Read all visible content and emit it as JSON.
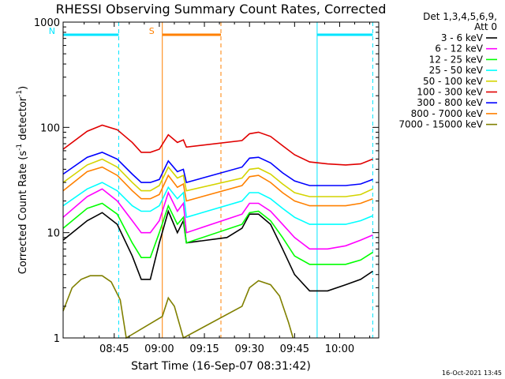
{
  "chart_data": {
    "type": "line",
    "title": "RHESSI Observing Summary Count Rates, Corrected",
    "xlabel": "Start Time (16-Sep-07 08:31:42)",
    "ylabel_main": "Corrected Count Rate (s",
    "ylabel_sup1": "-1",
    "ylabel_mid": " detector",
    "ylabel_sup2": "-1",
    "ylabel_end": ")",
    "yscale": "log",
    "ylim": [
      1,
      1000
    ],
    "xlim_minutes": [
      508,
      613
    ],
    "x_ticks": [
      {
        "minute": 525,
        "label": "08:45"
      },
      {
        "minute": 540,
        "label": "09:00"
      },
      {
        "minute": 555,
        "label": "09:15"
      },
      {
        "minute": 570,
        "label": "09:30"
      },
      {
        "minute": 585,
        "label": "09:45"
      },
      {
        "minute": 600,
        "label": "10:00"
      }
    ],
    "y_ticks": [
      {
        "value": 1,
        "label": "1"
      },
      {
        "value": 10,
        "label": "10"
      },
      {
        "value": 100,
        "label": "100"
      },
      {
        "value": 1000,
        "label": "1000"
      }
    ],
    "legend_header": [
      "Det 1,3,4,5,6,9,",
      "Att 0"
    ],
    "legend_position": "right",
    "timestamp": "16-Oct-2021 13:45",
    "data_gap_minutes": [
      563,
      568
    ],
    "markers": [
      {
        "label": "N",
        "color": "#00e5ff",
        "start": 508,
        "end": 526.5
      },
      {
        "label": "S",
        "color": "#ff8000",
        "start": 541,
        "end": 560.5
      },
      {
        "label": "",
        "color": "#00e5ff",
        "start": 592.5,
        "end": 611
      }
    ],
    "series": [
      {
        "name": "3 - 6 keV",
        "color": "#000000",
        "points": [
          [
            508,
            8.5
          ],
          [
            516,
            13
          ],
          [
            521,
            15.5
          ],
          [
            526,
            12
          ],
          [
            531,
            6
          ],
          [
            534,
            3.6
          ],
          [
            537,
            3.6
          ],
          [
            540,
            8
          ],
          [
            543,
            16
          ],
          [
            546,
            10
          ],
          [
            548,
            13
          ],
          [
            549,
            8
          ],
          [
            562.5,
            9
          ],
          [
            567.5,
            11
          ],
          [
            570,
            15
          ],
          [
            573,
            15
          ],
          [
            577,
            12
          ],
          [
            581,
            7
          ],
          [
            585,
            4
          ],
          [
            590,
            2.8
          ],
          [
            596,
            2.8
          ],
          [
            602,
            3.2
          ],
          [
            607,
            3.6
          ],
          [
            611,
            4.3
          ]
        ]
      },
      {
        "name": "6 - 12 keV",
        "color": "#ff00ff",
        "points": [
          [
            508,
            14
          ],
          [
            516,
            22
          ],
          [
            521,
            26
          ],
          [
            526,
            20
          ],
          [
            531,
            13
          ],
          [
            534,
            10
          ],
          [
            537,
            10
          ],
          [
            540,
            13
          ],
          [
            543,
            24
          ],
          [
            546,
            16
          ],
          [
            548,
            19
          ],
          [
            549,
            10
          ],
          [
            567.5,
            15
          ],
          [
            570,
            19
          ],
          [
            573,
            19
          ],
          [
            577,
            16
          ],
          [
            581,
            12
          ],
          [
            585,
            9
          ],
          [
            590,
            7
          ],
          [
            596,
            7
          ],
          [
            602,
            7.5
          ],
          [
            607,
            8.5
          ],
          [
            611,
            9.5
          ]
        ]
      },
      {
        "name": "12 - 25 keV",
        "color": "#00ff00",
        "points": [
          [
            508,
            11
          ],
          [
            516,
            17
          ],
          [
            521,
            19
          ],
          [
            526,
            15
          ],
          [
            531,
            8
          ],
          [
            534,
            5.8
          ],
          [
            537,
            5.8
          ],
          [
            540,
            10
          ],
          [
            543,
            18
          ],
          [
            546,
            12
          ],
          [
            548,
            14
          ],
          [
            549,
            8
          ],
          [
            567.5,
            12
          ],
          [
            570,
            15.5
          ],
          [
            573,
            16
          ],
          [
            577,
            13
          ],
          [
            581,
            9
          ],
          [
            585,
            6
          ],
          [
            590,
            5
          ],
          [
            596,
            5
          ],
          [
            602,
            5
          ],
          [
            607,
            5.5
          ],
          [
            611,
            6.5
          ]
        ]
      },
      {
        "name": "25 - 50 keV",
        "color": "#00ffff",
        "points": [
          [
            508,
            18
          ],
          [
            516,
            26
          ],
          [
            521,
            30
          ],
          [
            526,
            25
          ],
          [
            531,
            18
          ],
          [
            534,
            16
          ],
          [
            537,
            16
          ],
          [
            540,
            18
          ],
          [
            543,
            27
          ],
          [
            546,
            21
          ],
          [
            548,
            24
          ],
          [
            549,
            14
          ],
          [
            567.5,
            20
          ],
          [
            570,
            24
          ],
          [
            573,
            24
          ],
          [
            577,
            21
          ],
          [
            581,
            17
          ],
          [
            585,
            14
          ],
          [
            590,
            12
          ],
          [
            596,
            12
          ],
          [
            602,
            12
          ],
          [
            607,
            13
          ],
          [
            611,
            14.5
          ]
        ]
      },
      {
        "name": "50 - 100 keV",
        "color": "#d4d400",
        "points": [
          [
            508,
            30
          ],
          [
            516,
            44
          ],
          [
            521,
            50
          ],
          [
            526,
            42
          ],
          [
            531,
            30
          ],
          [
            534,
            25
          ],
          [
            537,
            25
          ],
          [
            540,
            28
          ],
          [
            543,
            42
          ],
          [
            546,
            33
          ],
          [
            548,
            35
          ],
          [
            549,
            25
          ],
          [
            567.5,
            33
          ],
          [
            570,
            40
          ],
          [
            573,
            41
          ],
          [
            577,
            36
          ],
          [
            581,
            29
          ],
          [
            585,
            24
          ],
          [
            590,
            22
          ],
          [
            596,
            22
          ],
          [
            602,
            22
          ],
          [
            607,
            23
          ],
          [
            611,
            26
          ]
        ]
      },
      {
        "name": "100 - 300 keV",
        "color": "#e00000",
        "points": [
          [
            508,
            62
          ],
          [
            516,
            92
          ],
          [
            521,
            105
          ],
          [
            526,
            95
          ],
          [
            531,
            72
          ],
          [
            534,
            58
          ],
          [
            537,
            58
          ],
          [
            540,
            62
          ],
          [
            543,
            85
          ],
          [
            546,
            72
          ],
          [
            548,
            76
          ],
          [
            549,
            65
          ],
          [
            567.5,
            75
          ],
          [
            570,
            87
          ],
          [
            573,
            90
          ],
          [
            577,
            82
          ],
          [
            581,
            67
          ],
          [
            585,
            55
          ],
          [
            590,
            47
          ],
          [
            596,
            45
          ],
          [
            602,
            44
          ],
          [
            607,
            45
          ],
          [
            611,
            50
          ]
        ]
      },
      {
        "name": "300 - 800 keV",
        "color": "#0000ff",
        "points": [
          [
            508,
            36
          ],
          [
            516,
            52
          ],
          [
            521,
            58
          ],
          [
            526,
            50
          ],
          [
            531,
            36
          ],
          [
            534,
            30
          ],
          [
            537,
            30
          ],
          [
            540,
            32
          ],
          [
            543,
            48
          ],
          [
            546,
            38
          ],
          [
            548,
            40
          ],
          [
            549,
            30
          ],
          [
            567.5,
            42
          ],
          [
            570,
            51
          ],
          [
            573,
            52
          ],
          [
            577,
            46
          ],
          [
            581,
            37
          ],
          [
            585,
            31
          ],
          [
            590,
            28
          ],
          [
            596,
            28
          ],
          [
            602,
            28
          ],
          [
            607,
            29
          ],
          [
            611,
            32
          ]
        ]
      },
      {
        "name": "800 - 7000 keV",
        "color": "#ff8000",
        "points": [
          [
            508,
            25
          ],
          [
            516,
            38
          ],
          [
            521,
            42
          ],
          [
            526,
            35
          ],
          [
            531,
            25
          ],
          [
            534,
            21
          ],
          [
            537,
            21
          ],
          [
            540,
            23
          ],
          [
            543,
            35
          ],
          [
            546,
            27
          ],
          [
            548,
            29
          ],
          [
            549,
            20
          ],
          [
            567.5,
            28
          ],
          [
            570,
            34
          ],
          [
            573,
            35
          ],
          [
            577,
            30
          ],
          [
            581,
            24
          ],
          [
            585,
            20
          ],
          [
            590,
            18
          ],
          [
            596,
            18
          ],
          [
            602,
            18
          ],
          [
            607,
            19
          ],
          [
            611,
            21
          ]
        ]
      },
      {
        "name": "7000 - 15000 keV",
        "color": "#808000",
        "points": [
          [
            508,
            1.8
          ],
          [
            511,
            3
          ],
          [
            514,
            3.6
          ],
          [
            517,
            3.9
          ],
          [
            521,
            3.9
          ],
          [
            524,
            3.4
          ],
          [
            527,
            2.3
          ],
          [
            529,
            1
          ],
          [
            541,
            1.6
          ],
          [
            543,
            2.4
          ],
          [
            545,
            2
          ],
          [
            548,
            1
          ],
          [
            567.5,
            2
          ],
          [
            570,
            3
          ],
          [
            573,
            3.5
          ],
          [
            577,
            3.2
          ],
          [
            580,
            2.5
          ],
          [
            583,
            1.4
          ],
          [
            584.5,
            1
          ]
        ]
      }
    ]
  }
}
